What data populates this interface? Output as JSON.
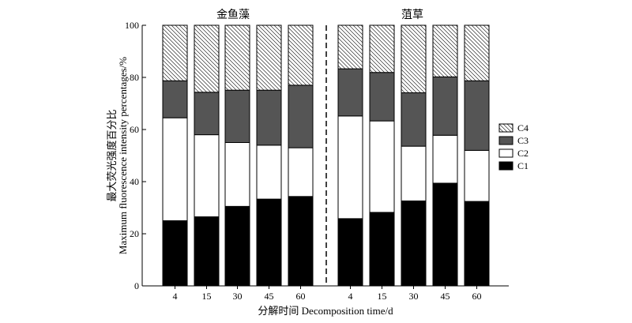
{
  "chart_data": {
    "type": "bar",
    "stacked": true,
    "groups": [
      {
        "title": "金鱼藻",
        "categories": [
          "4",
          "15",
          "30",
          "45",
          "60"
        ]
      },
      {
        "title": "菹草",
        "categories": [
          "4",
          "15",
          "30",
          "45",
          "60"
        ]
      }
    ],
    "series": [
      {
        "name": "C1",
        "color": "#000000",
        "pattern": "solid",
        "values": [
          25,
          26.5,
          30.5,
          33.3,
          34.3,
          25.8,
          28.2,
          32.6,
          39.4,
          32.4
        ]
      },
      {
        "name": "C2",
        "color": "#ffffff",
        "pattern": "solid",
        "values": [
          39.5,
          31.5,
          24.5,
          20.7,
          18.7,
          39.4,
          35.1,
          21,
          18.4,
          19.6
        ]
      },
      {
        "name": "C3",
        "color": "#555555",
        "pattern": "solid",
        "values": [
          14.2,
          16.3,
          20.1,
          21.1,
          24,
          18.1,
          18.6,
          20.5,
          22.4,
          26.7
        ]
      },
      {
        "name": "C4",
        "color": "#ffffff",
        "pattern": "hatch",
        "values": [
          21.3,
          25.7,
          24.9,
          24.9,
          23,
          16.7,
          18.1,
          25.9,
          19.8,
          21.3
        ]
      }
    ],
    "xlabel": "分解时间  Decomposition time/d",
    "ylabel_line1": "最大荧光强度百分比",
    "ylabel_line2": "Maximum fluorescence intensity percentages/%",
    "ylim": [
      0,
      100
    ],
    "yticks": [
      0,
      20,
      40,
      60,
      80,
      100
    ],
    "grid": false,
    "legend_position": "right",
    "group_separator": "dashed vertical line"
  }
}
